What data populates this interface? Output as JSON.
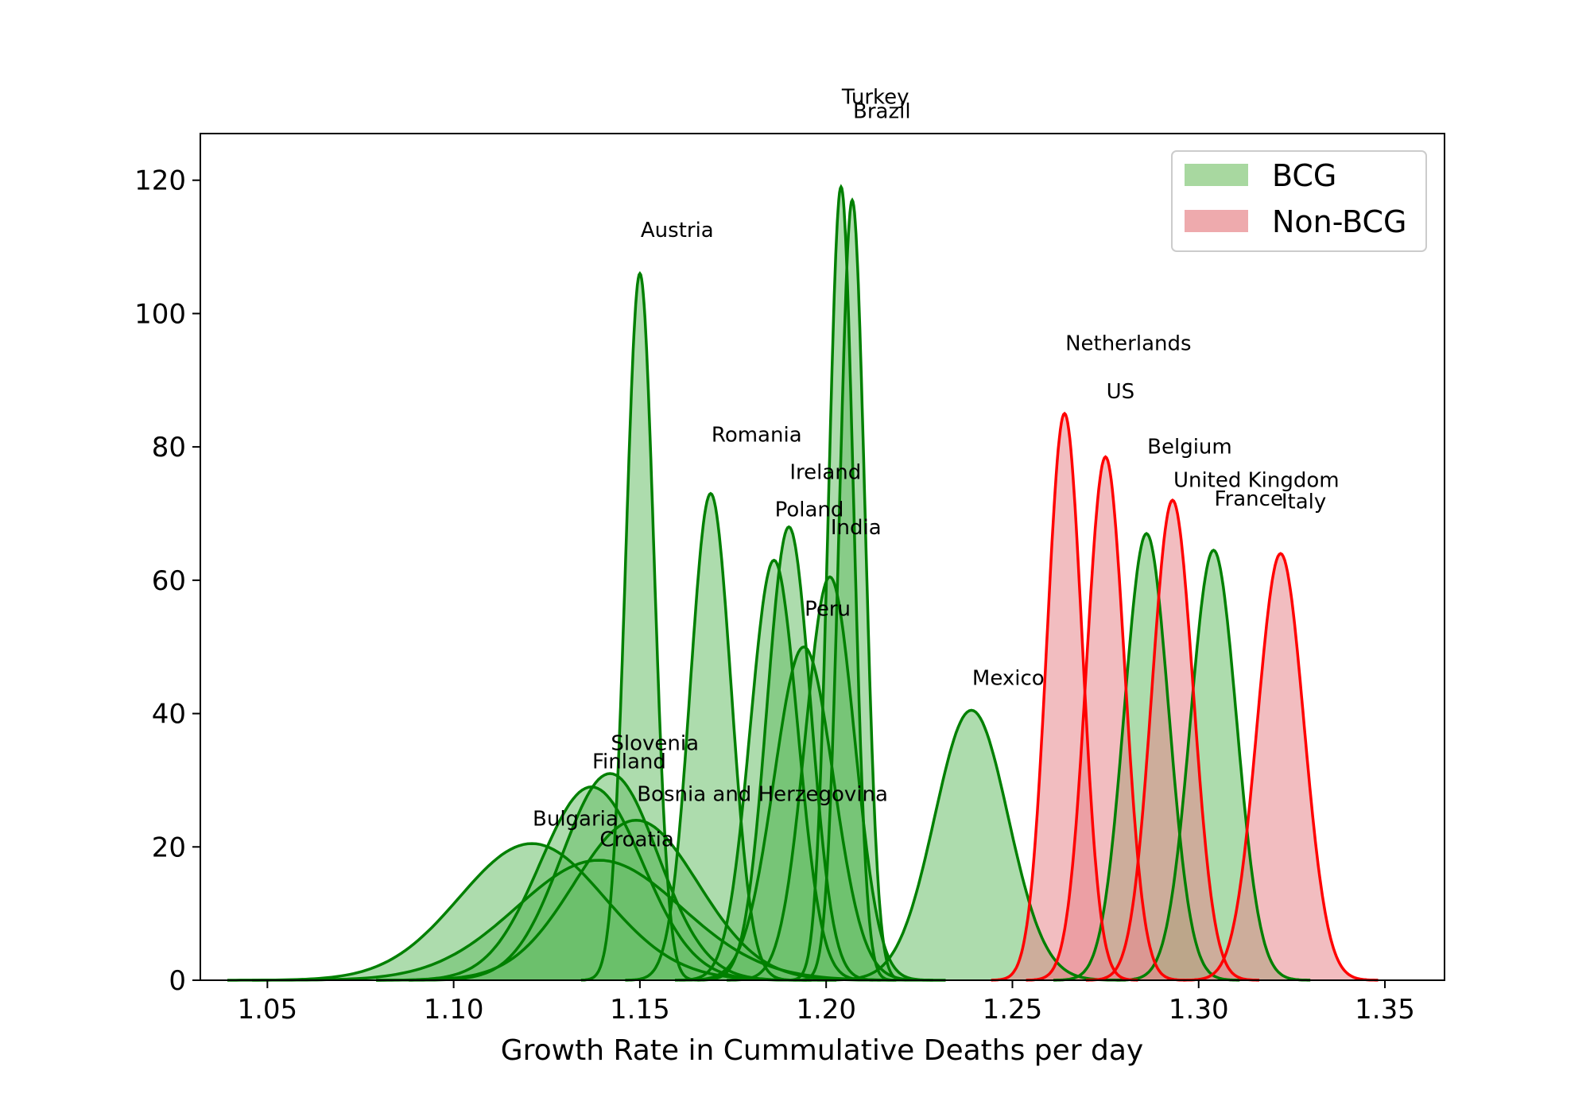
{
  "chart_data": {
    "type": "area",
    "title": "",
    "xlabel": "Growth Rate in Cummulative Deaths per day",
    "ylabel": "",
    "xlim": [
      1.032,
      1.366
    ],
    "ylim": [
      0,
      127
    ],
    "xticks": [
      1.05,
      1.1,
      1.15,
      1.2,
      1.25,
      1.3,
      1.35
    ],
    "xtick_labels": [
      "1.05",
      "1.10",
      "1.15",
      "1.20",
      "1.25",
      "1.30",
      "1.35"
    ],
    "yticks": [
      0,
      20,
      40,
      60,
      80,
      100,
      120
    ],
    "ytick_labels": [
      "0",
      "20",
      "40",
      "60",
      "80",
      "100",
      "120"
    ],
    "grid": false,
    "legend": {
      "position": "top-right",
      "entries": [
        {
          "label": "BCG",
          "color": "#a8d8a0"
        },
        {
          "label": "Non-BCG",
          "color": "#eeaaad"
        }
      ]
    },
    "colors": {
      "bcg_line": "#008000",
      "bcg_fill": "#6abf69",
      "non_bcg_line": "#ff0000",
      "non_bcg_fill": "#e8878c"
    },
    "series": [
      {
        "name": "Bulgaria",
        "group": "BCG",
        "mean": 1.121,
        "peak": 20.5
      },
      {
        "name": "Croatia",
        "group": "BCG",
        "mean": 1.139,
        "peak": 18.0
      },
      {
        "name": "Finland",
        "group": "BCG",
        "mean": 1.137,
        "peak": 29.0
      },
      {
        "name": "Slovenia",
        "group": "BCG",
        "mean": 1.142,
        "peak": 31.0
      },
      {
        "name": "Bosnia and Herzegovina",
        "group": "BCG",
        "mean": 1.149,
        "peak": 24.0
      },
      {
        "name": "Austria",
        "group": "BCG",
        "mean": 1.15,
        "peak": 106
      },
      {
        "name": "Romania",
        "group": "BCG",
        "mean": 1.169,
        "peak": 73
      },
      {
        "name": "Poland",
        "group": "BCG",
        "mean": 1.186,
        "peak": 63
      },
      {
        "name": "Ireland",
        "group": "BCG",
        "mean": 1.19,
        "peak": 68
      },
      {
        "name": "Peru",
        "group": "BCG",
        "mean": 1.194,
        "peak": 50
      },
      {
        "name": "India",
        "group": "BCG",
        "mean": 1.201,
        "peak": 60.5
      },
      {
        "name": "Turkey",
        "group": "BCG",
        "mean": 1.204,
        "peak": 119
      },
      {
        "name": "Brazil",
        "group": "BCG",
        "mean": 1.207,
        "peak": 117
      },
      {
        "name": "Mexico",
        "group": "BCG",
        "mean": 1.239,
        "peak": 40.5
      },
      {
        "name": "Belgium",
        "group": "BCG",
        "mean": 1.286,
        "peak": 67
      },
      {
        "name": "France",
        "group": "BCG",
        "mean": 1.304,
        "peak": 64.5
      },
      {
        "name": "Netherlands",
        "group": "Non-BCG",
        "mean": 1.264,
        "peak": 85
      },
      {
        "name": "US",
        "group": "Non-BCG",
        "mean": 1.275,
        "peak": 78.5
      },
      {
        "name": "United Kingdom",
        "group": "Non-BCG",
        "mean": 1.293,
        "peak": 72
      },
      {
        "name": "Italy",
        "group": "Non-BCG",
        "mean": 1.322,
        "peak": 64
      }
    ],
    "annotations": [
      {
        "text": "Turkey",
        "x": 1.204,
        "y": 131.5
      },
      {
        "text": "Brazil",
        "x": 1.207,
        "y": 129.3
      },
      {
        "text": "Austria",
        "x": 1.15,
        "y": 111.5
      },
      {
        "text": "Netherlands",
        "x": 1.264,
        "y": 94.5
      },
      {
        "text": "US",
        "x": 1.275,
        "y": 87.3
      },
      {
        "text": "Romania",
        "x": 1.169,
        "y": 80.8
      },
      {
        "text": "Belgium",
        "x": 1.286,
        "y": 79.0
      },
      {
        "text": "Ireland",
        "x": 1.19,
        "y": 75.2
      },
      {
        "text": "United Kingdom",
        "x": 1.293,
        "y": 74.0
      },
      {
        "text": "France",
        "x": 1.304,
        "y": 71.2
      },
      {
        "text": "Italy",
        "x": 1.322,
        "y": 70.8
      },
      {
        "text": "Poland",
        "x": 1.186,
        "y": 69.6
      },
      {
        "text": "India",
        "x": 1.201,
        "y": 66.9
      },
      {
        "text": "Peru",
        "x": 1.194,
        "y": 54.7
      },
      {
        "text": "Mexico",
        "x": 1.239,
        "y": 44.3
      },
      {
        "text": "Slovenia",
        "x": 1.142,
        "y": 34.5
      },
      {
        "text": "Finland",
        "x": 1.137,
        "y": 31.8
      },
      {
        "text": "Bosnia and Herzegovina",
        "x": 1.149,
        "y": 26.9
      },
      {
        "text": "Bulgaria",
        "x": 1.121,
        "y": 23.2
      },
      {
        "text": "Croatia",
        "x": 1.139,
        "y": 20.1
      }
    ]
  }
}
